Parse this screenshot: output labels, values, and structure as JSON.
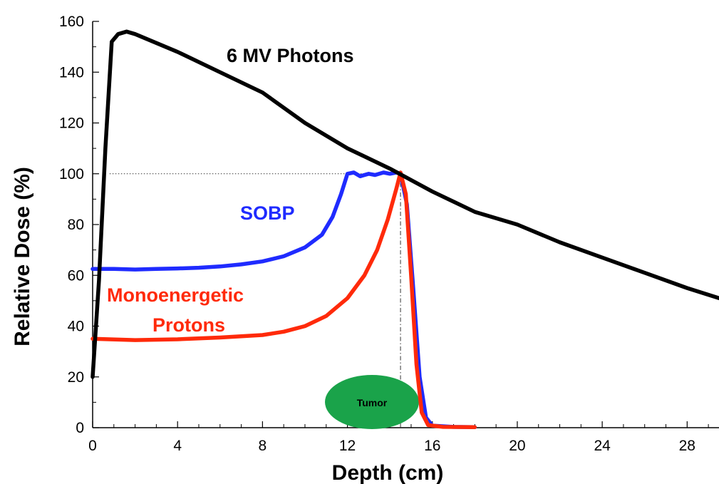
{
  "chart_data": {
    "type": "line",
    "xlabel": "Depth (cm)",
    "ylabel": "Relative Dose (%)",
    "xlim": [
      0,
      29.5
    ],
    "ylim": [
      0,
      160
    ],
    "x_ticks": [
      0,
      4,
      8,
      12,
      16,
      20,
      24,
      28
    ],
    "y_ticks": [
      0,
      20,
      40,
      60,
      80,
      100,
      120,
      140,
      160
    ],
    "series": [
      {
        "name": "6 MV Photons",
        "color": "#000000",
        "points": [
          [
            0,
            20
          ],
          [
            0.3,
            58
          ],
          [
            0.6,
            110
          ],
          [
            0.9,
            152
          ],
          [
            1.2,
            155
          ],
          [
            1.6,
            156
          ],
          [
            2,
            155
          ],
          [
            4,
            148
          ],
          [
            6,
            140
          ],
          [
            8,
            132
          ],
          [
            10,
            120
          ],
          [
            12,
            110
          ],
          [
            14,
            102
          ],
          [
            16,
            93
          ],
          [
            18,
            85
          ],
          [
            20,
            80
          ],
          [
            22,
            73
          ],
          [
            24,
            67
          ],
          [
            26,
            61
          ],
          [
            28,
            55
          ],
          [
            29.5,
            51
          ]
        ]
      },
      {
        "name": "SOBP",
        "color": "#1f2bff",
        "points": [
          [
            0,
            62.5
          ],
          [
            1,
            62.5
          ],
          [
            2,
            62.3
          ],
          [
            3,
            62.5
          ],
          [
            4,
            62.7
          ],
          [
            5,
            63
          ],
          [
            6,
            63.5
          ],
          [
            7,
            64.3
          ],
          [
            8,
            65.5
          ],
          [
            9,
            67.5
          ],
          [
            10,
            71
          ],
          [
            10.8,
            76
          ],
          [
            11.3,
            83
          ],
          [
            11.7,
            92
          ],
          [
            12,
            100
          ],
          [
            12.3,
            100.5
          ],
          [
            12.6,
            99
          ],
          [
            13,
            100
          ],
          [
            13.3,
            99.5
          ],
          [
            13.7,
            100.5
          ],
          [
            14,
            100
          ],
          [
            14.3,
            100.5
          ],
          [
            14.5,
            100
          ],
          [
            14.8,
            88
          ],
          [
            15.1,
            55
          ],
          [
            15.4,
            20
          ],
          [
            15.7,
            4
          ],
          [
            16,
            0.8
          ],
          [
            17,
            0.3
          ],
          [
            18,
            0.2
          ]
        ]
      },
      {
        "name": "Monoenergetic Protons",
        "color": "#ff2a0a",
        "points": [
          [
            0,
            35
          ],
          [
            2,
            34.5
          ],
          [
            4,
            34.8
          ],
          [
            6,
            35.5
          ],
          [
            8,
            36.5
          ],
          [
            9,
            37.8
          ],
          [
            10,
            40
          ],
          [
            11,
            44
          ],
          [
            12,
            51
          ],
          [
            12.8,
            60
          ],
          [
            13.4,
            70
          ],
          [
            13.9,
            82
          ],
          [
            14.3,
            94
          ],
          [
            14.5,
            100.5
          ],
          [
            14.75,
            92
          ],
          [
            15,
            60
          ],
          [
            15.25,
            25
          ],
          [
            15.5,
            6
          ],
          [
            15.8,
            1
          ],
          [
            16.5,
            0.3
          ],
          [
            18,
            0.2
          ]
        ]
      }
    ],
    "reference_lines": [
      {
        "type": "horizontal",
        "y": 100,
        "x_from": 0.8,
        "x_to": 14.5,
        "style": "dotted"
      },
      {
        "type": "vertical",
        "x": 14.5,
        "y_from": 0,
        "y_to": 100,
        "style": "dash-dot"
      }
    ],
    "annotations": {
      "photons_label": "6 MV Photons",
      "sobp_label": "SOBP",
      "mono_label_line1": "Monoenergetic",
      "mono_label_line2": "Protons",
      "tumor_label": "Tumor",
      "tumor_color": "#1aa34a"
    },
    "grid": false,
    "legend": "inline labels"
  }
}
